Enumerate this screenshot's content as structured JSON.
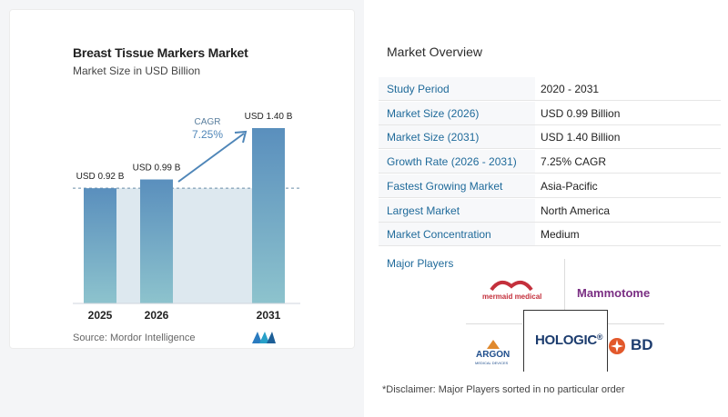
{
  "chart": {
    "title": "Breast Tissue Markers Market",
    "subtitle": "Market Size in USD Billion",
    "source": "Source:  Mordor Intelligence",
    "cagr_label": "CAGR",
    "cagr_value": "7.25%"
  },
  "chart_data": {
    "type": "bar",
    "categories": [
      "2025",
      "2026",
      "2031"
    ],
    "values": [
      0.92,
      0.99,
      1.4
    ],
    "data_labels": [
      "USD 0.92 B",
      "USD 0.99 B",
      "USD 1.40 B"
    ],
    "title": "Breast Tissue Markers Market",
    "subtitle": "Market Size in USD Billion",
    "ylim": [
      0,
      1.4
    ],
    "grid": false,
    "colors": {
      "bar_top": "#5a8fbd",
      "bar_bottom": "#8dc3cd",
      "band": "#dde8ef",
      "arrow": "#4f86b8"
    }
  },
  "overview": {
    "title": "Market Overview",
    "rows": [
      {
        "label": "Study Period",
        "value": "2020 - 2031"
      },
      {
        "label": "Market Size (2026)",
        "value": "USD 0.99 Billion"
      },
      {
        "label": "Market Size (2031)",
        "value": "USD 1.40 Billion"
      },
      {
        "label": "Growth Rate (2026 - 2031)",
        "value": "7.25% CAGR"
      },
      {
        "label": "Fastest Growing Market",
        "value": "Asia-Pacific"
      },
      {
        "label": "Largest Market",
        "value": "North America"
      },
      {
        "label": "Market Concentration",
        "value": "Medium"
      }
    ]
  },
  "players": {
    "title": "Major Players",
    "logos": {
      "mermaid": "mermaid medical",
      "mammotome": "Mammotome",
      "argon": "ARGON",
      "argon_sub": "MEDICAL DEVICES",
      "hologic": "HOLOGIC",
      "bd": "BD"
    }
  },
  "disclaimer": "*Disclaimer: Major Players sorted in no particular order",
  "icons": {
    "brand": "mordor-logo-icon",
    "hologic": "hologic-ribbon-icon",
    "bd": "bd-starburst-icon",
    "argon": "argon-triangle-icon",
    "mermaid": "mermaid-arc-icon"
  }
}
